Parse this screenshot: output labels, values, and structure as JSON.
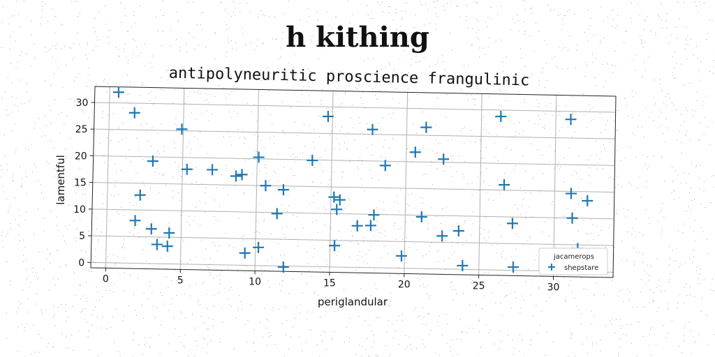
{
  "chart_data": {
    "type": "scatter",
    "title": "h kithing",
    "subtitle": "antipolyneuritic proscience frangulinic",
    "xlabel": "periglandular",
    "ylabel": "lamentful",
    "xlim": [
      -1,
      34
    ],
    "ylim": [
      -1,
      33
    ],
    "xticks": [
      0,
      5,
      10,
      15,
      20,
      25,
      30
    ],
    "yticks": [
      0,
      5,
      10,
      15,
      20,
      25,
      30
    ],
    "grid": true,
    "legend": {
      "title": "jacamerops",
      "placement": "bottom-right"
    },
    "series": [
      {
        "name": "shepstare",
        "color": "#1f77b4",
        "marker": "plus",
        "points": [
          [
            0.6,
            32.0
          ],
          [
            1.7,
            28.2
          ],
          [
            4.9,
            25.3
          ],
          [
            3.0,
            19.2
          ],
          [
            2.2,
            12.8
          ],
          [
            1.9,
            8.0
          ],
          [
            3.0,
            6.5
          ],
          [
            3.4,
            3.6
          ],
          [
            4.1,
            3.3
          ],
          [
            4.2,
            5.8
          ],
          [
            5.3,
            17.8
          ],
          [
            7.0,
            17.8
          ],
          [
            8.6,
            16.7
          ],
          [
            9.0,
            17.0
          ],
          [
            10.1,
            20.3
          ],
          [
            10.6,
            15.0
          ],
          [
            11.8,
            14.3
          ],
          [
            11.4,
            9.8
          ],
          [
            9.3,
            2.3
          ],
          [
            10.2,
            3.4
          ],
          [
            11.9,
            -0.2
          ],
          [
            13.7,
            19.9
          ],
          [
            14.7,
            28.2
          ],
          [
            15.2,
            13.1
          ],
          [
            15.6,
            12.6
          ],
          [
            15.4,
            10.8
          ],
          [
            15.3,
            4.0
          ],
          [
            16.8,
            7.8
          ],
          [
            17.7,
            7.9
          ],
          [
            17.9,
            9.9
          ],
          [
            17.7,
            25.9
          ],
          [
            18.6,
            19.2
          ],
          [
            19.8,
            2.3
          ],
          [
            20.6,
            21.8
          ],
          [
            21.3,
            26.5
          ],
          [
            21.1,
            9.7
          ],
          [
            22.5,
            20.6
          ],
          [
            22.5,
            6.2
          ],
          [
            23.6,
            7.2
          ],
          [
            23.9,
            0.7
          ],
          [
            26.3,
            28.8
          ],
          [
            26.6,
            16.0
          ],
          [
            27.2,
            8.8
          ],
          [
            27.3,
            0.6
          ],
          [
            31.0,
            28.5
          ],
          [
            31.1,
            14.6
          ],
          [
            31.2,
            10.0
          ],
          [
            32.2,
            13.3
          ],
          [
            31.6,
            4.3
          ]
        ]
      }
    ]
  }
}
